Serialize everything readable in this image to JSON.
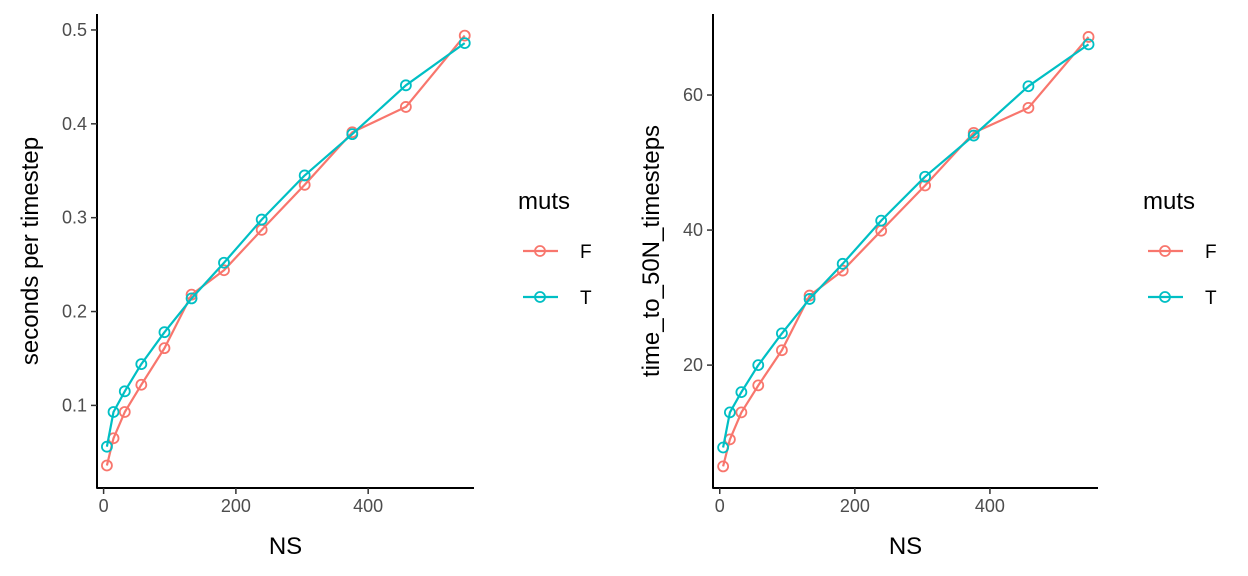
{
  "chart_data": [
    {
      "type": "line",
      "title": "",
      "xlabel": "NS",
      "ylabel": "seconds per timestep",
      "xlim": [
        -10,
        560
      ],
      "ylim": [
        0.012,
        0.517
      ],
      "xticks": [
        0,
        200,
        400
      ],
      "xtick_labels": [
        "0",
        "200",
        "400"
      ],
      "yticks": [
        0.1,
        0.2,
        0.3,
        0.4,
        0.5
      ],
      "ytick_labels": [
        "0.1",
        "0.2",
        "0.3",
        "0.4",
        "0.5"
      ],
      "grid": false,
      "legend": {
        "title": "muts",
        "placement": "right"
      },
      "series": [
        {
          "name": "F",
          "color": "#F8766D",
          "points": [
            [
              5,
              0.036
            ],
            [
              15,
              0.065
            ],
            [
              32,
              0.093
            ],
            [
              57,
              0.122
            ],
            [
              92,
              0.161
            ],
            [
              133,
              0.218
            ],
            [
              182,
              0.244
            ],
            [
              239,
              0.287
            ],
            [
              304,
              0.335
            ],
            [
              376,
              0.391
            ],
            [
              457,
              0.418
            ],
            [
              546,
              0.494
            ]
          ]
        },
        {
          "name": "T",
          "color": "#00BFC4",
          "points": [
            [
              5,
              0.056
            ],
            [
              15,
              0.093
            ],
            [
              32,
              0.115
            ],
            [
              57,
              0.144
            ],
            [
              92,
              0.178
            ],
            [
              133,
              0.214
            ],
            [
              182,
              0.252
            ],
            [
              239,
              0.298
            ],
            [
              304,
              0.345
            ],
            [
              376,
              0.389
            ],
            [
              457,
              0.441
            ],
            [
              546,
              0.486
            ]
          ]
        }
      ]
    },
    {
      "type": "line",
      "title": "",
      "xlabel": "NS",
      "ylabel": "time_to_50N_timesteps",
      "xlim": [
        -10,
        560
      ],
      "ylim": [
        1.8,
        72.0
      ],
      "xticks": [
        0,
        200,
        400
      ],
      "xtick_labels": [
        "0",
        "200",
        "400"
      ],
      "yticks": [
        20,
        40,
        60
      ],
      "ytick_labels": [
        "20",
        "40",
        "60"
      ],
      "grid": false,
      "legend": {
        "title": "muts",
        "placement": "right"
      },
      "series": [
        {
          "name": "F",
          "color": "#F8766D",
          "points": [
            [
              5,
              5.0
            ],
            [
              15,
              9.0
            ],
            [
              32,
              13.0
            ],
            [
              57,
              17.0
            ],
            [
              92,
              22.2
            ],
            [
              133,
              30.3
            ],
            [
              182,
              34.0
            ],
            [
              239,
              39.9
            ],
            [
              304,
              46.6
            ],
            [
              376,
              54.4
            ],
            [
              457,
              58.1
            ],
            [
              546,
              68.6
            ]
          ]
        },
        {
          "name": "T",
          "color": "#00BFC4",
          "points": [
            [
              5,
              7.8
            ],
            [
              15,
              13.0
            ],
            [
              32,
              16.0
            ],
            [
              57,
              20.0
            ],
            [
              92,
              24.7
            ],
            [
              133,
              29.8
            ],
            [
              182,
              35.0
            ],
            [
              239,
              41.4
            ],
            [
              304,
              47.9
            ],
            [
              376,
              54.0
            ],
            [
              457,
              61.3
            ],
            [
              546,
              67.5
            ]
          ]
        }
      ]
    }
  ]
}
